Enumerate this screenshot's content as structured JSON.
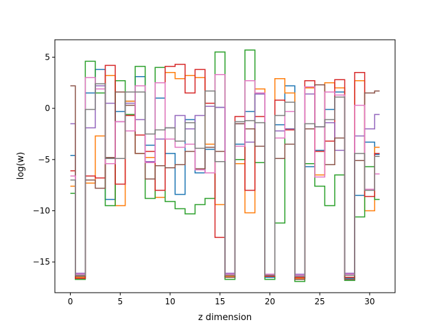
{
  "chart_data": {
    "type": "line",
    "drawstyle": "steps-mid",
    "xlabel": "z dimension",
    "ylabel": "log(w)",
    "xlim": [
      -1.55,
      32.55
    ],
    "ylim": [
      -18.0,
      6.7
    ],
    "xticks": [
      0,
      5,
      10,
      15,
      20,
      25,
      30
    ],
    "yticks": [
      -15,
      -10,
      -5,
      0,
      5
    ],
    "ytick_labels": [
      "−15",
      "−10",
      "−5",
      "0",
      "5"
    ],
    "grid": false,
    "x": [
      0,
      1,
      2,
      3,
      4,
      5,
      6,
      7,
      8,
      9,
      10,
      11,
      12,
      13,
      14,
      15,
      16,
      17,
      18,
      19,
      20,
      21,
      22,
      23,
      24,
      25,
      26,
      27,
      28,
      29,
      30,
      31
    ],
    "series": [
      {
        "color": "#1f77b4",
        "values": [
          -4.6,
          -16.6,
          1.5,
          3.8,
          -8.9,
          -0.3,
          0.7,
          3.1,
          -3.6,
          1.0,
          -4.4,
          -8.4,
          -1.1,
          -6.3,
          -4.0,
          0.1,
          -16.4,
          -3.5,
          -0.3,
          1.4,
          -16.5,
          -1.6,
          2.2,
          -16.6,
          -5.7,
          -4.1,
          -0.1,
          1.6,
          -16.6,
          -8.5,
          -3.3,
          -4.5
        ]
      },
      {
        "color": "#ff7f0e",
        "values": [
          -7.6,
          -16.5,
          -7.3,
          -2.7,
          3.2,
          -9.5,
          0.7,
          -4.4,
          -4.8,
          -8.7,
          3.5,
          2.9,
          3.2,
          3.0,
          -3.5,
          -9.4,
          -16.4,
          -5.4,
          -10.2,
          1.9,
          -16.4,
          2.9,
          1.5,
          -16.6,
          2.0,
          -6.5,
          2.5,
          2.0,
          -16.5,
          2.7,
          -10.0,
          -3.8
        ]
      },
      {
        "color": "#2ca02c",
        "values": [
          -8.3,
          -16.7,
          4.6,
          1.5,
          -9.5,
          2.7,
          -0.6,
          4.1,
          -8.8,
          4.0,
          -9.1,
          -9.8,
          -10.3,
          -9.4,
          -8.8,
          5.5,
          -16.7,
          -5.0,
          5.7,
          -5.3,
          -16.7,
          -11.2,
          -2.0,
          -16.9,
          -5.4,
          -7.6,
          -9.5,
          -6.5,
          -16.8,
          -10.6,
          -5.7,
          -8.9
        ]
      },
      {
        "color": "#d62728",
        "values": [
          -6.1,
          -16.6,
          -6.6,
          -6.8,
          4.2,
          -7.4,
          -0.7,
          -2.6,
          -4.2,
          -8.0,
          4.1,
          4.3,
          1.5,
          3.8,
          0.5,
          -12.6,
          -16.3,
          -0.8,
          -8.0,
          -0.8,
          -16.4,
          0.8,
          -2.1,
          -16.5,
          2.7,
          -4.2,
          -3.2,
          2.8,
          -16.5,
          3.5,
          -8.6,
          -4.4
        ]
      },
      {
        "color": "#9467bd",
        "values": [
          -1.5,
          -16.1,
          -1.9,
          2.2,
          0.5,
          -1.3,
          0.5,
          -1.1,
          -5.2,
          -3.0,
          -1.9,
          -0.7,
          -2.0,
          -0.7,
          0.2,
          0.1,
          -16.1,
          -1.5,
          -3.3,
          1.4,
          -16.2,
          -2.2,
          -2.0,
          -16.2,
          1.4,
          -1.8,
          -1.4,
          -4.1,
          -16.1,
          -2.7,
          -2.0,
          -0.6
        ]
      },
      {
        "color": "#8c564b",
        "values": [
          2.2,
          -16.4,
          -7.0,
          -7.8,
          -4.8,
          1.6,
          0.3,
          -4.4,
          -6.9,
          -5.6,
          -5.8,
          -5.5,
          -4.2,
          -5.9,
          -3.8,
          -4.2,
          -16.5,
          -1.5,
          -2.0,
          -3.7,
          -16.3,
          -4.9,
          -3.5,
          -16.7,
          -2.0,
          2.3,
          -5.5,
          -2.9,
          -16.7,
          -5.1,
          1.5,
          1.7
        ]
      },
      {
        "color": "#e377c2",
        "values": [
          -6.6,
          -16.2,
          3.0,
          1.9,
          -5.4,
          -1.3,
          -2.2,
          2.2,
          -5.3,
          2.5,
          -3.0,
          -3.8,
          -3.5,
          -6.0,
          -6.3,
          3.3,
          -16.2,
          -3.7,
          2.7,
          1.5,
          -16.2,
          -2.9,
          -0.3,
          -16.3,
          2.1,
          -6.7,
          1.6,
          1.3,
          -16.2,
          0.3,
          -7.9,
          -6.4
        ]
      },
      {
        "color": "#7f7f7f",
        "values": [
          -7.0,
          -16.3,
          -0.1,
          2.4,
          -4.9,
          -4.9,
          1.6,
          1.6,
          -2.5,
          -2.1,
          -1.9,
          -3.2,
          -1.4,
          -3.9,
          1.7,
          -5.2,
          -16.3,
          -1.3,
          -1.2,
          -1.4,
          -16.3,
          -0.7,
          0.6,
          -16.4,
          -1.5,
          -1.8,
          -1.1,
          1.1,
          -16.3,
          -4.4,
          -8.0,
          -4.7
        ]
      }
    ]
  }
}
